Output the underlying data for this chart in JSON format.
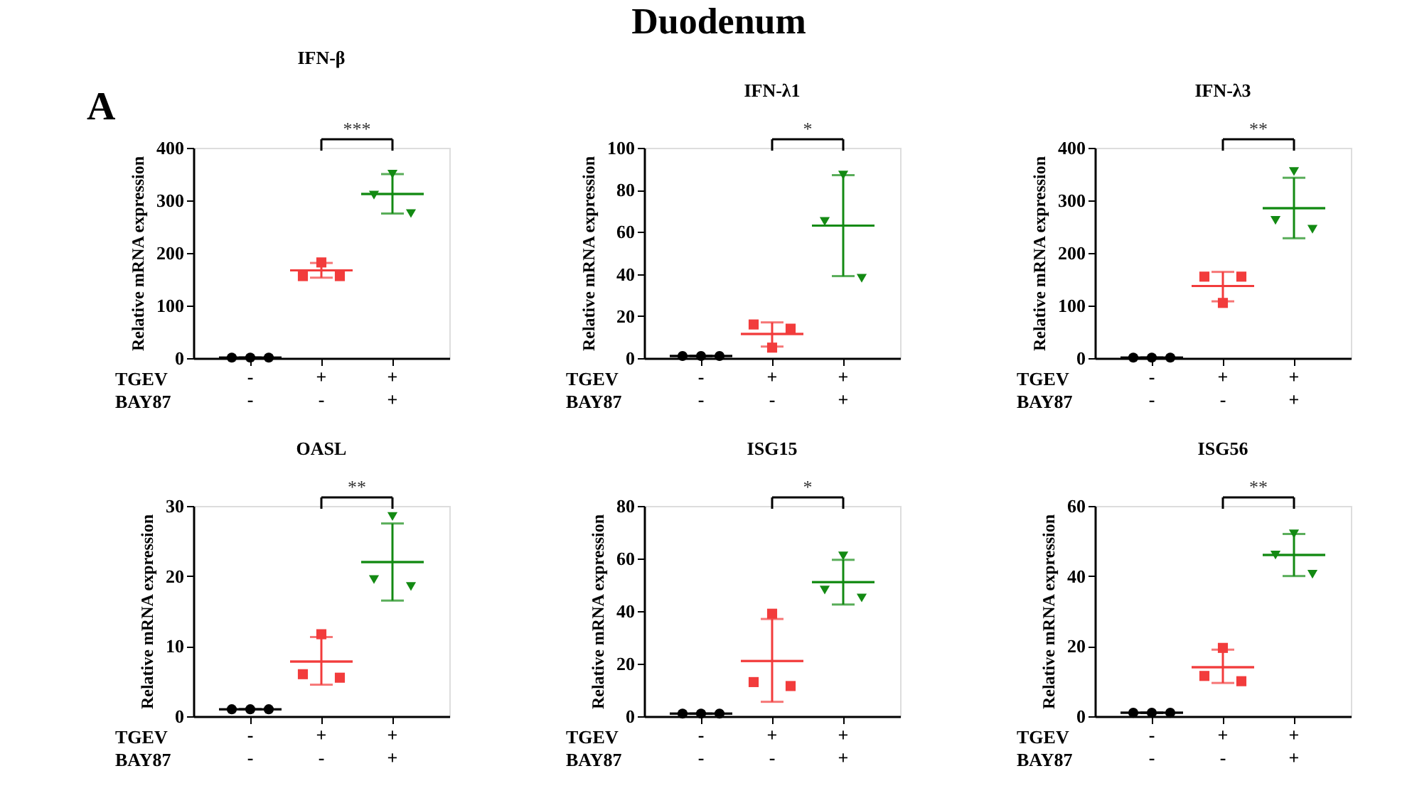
{
  "chart_data": [
    {
      "type": "scatter",
      "title": "IFN-β",
      "ylabel": "Relative mRNA expression",
      "categories": [
        "-\n-",
        "+\n-",
        "+\n+"
      ],
      "ylim": [
        0,
        400
      ],
      "yticks": [
        0,
        100,
        200,
        300,
        400
      ],
      "series": [
        {
          "color": "#000000",
          "marker": "circle",
          "x": [
            "-\n-",
            "-\n-",
            "-\n-"
          ],
          "values": [
            1,
            1,
            1
          ]
        },
        {
          "color": "#f23c3c",
          "marker": "square",
          "x": [
            "+\n-",
            "+\n-",
            "+\n-"
          ],
          "values": [
            156,
            182,
            156
          ]
        },
        {
          "color": "#138a13",
          "marker": "triangle",
          "x": [
            "+\n+",
            "+\n+",
            "+\n+"
          ],
          "values": [
            310,
            350,
            275
          ]
        },
        {
          "type": "box",
          "color": "#000000",
          "x": [
            "-\n-"
          ],
          "boxes": [
            {
              "low": 1,
              "q1": 1,
              "median": 1,
              "q3": 1,
              "high": 1
            }
          ]
        },
        {
          "type": "box",
          "color": "#f23c3c",
          "x": [
            "+\n-"
          ],
          "boxes": [
            {
              "low": 153,
              "q1": 167,
              "median": 167,
              "q3": 167,
              "high": 181
            }
          ]
        },
        {
          "type": "box",
          "color": "#138a13",
          "x": [
            "+\n+"
          ],
          "boxes": [
            {
              "low": 275,
              "q1": 312,
              "median": 312,
              "q3": 312,
              "high": 350
            }
          ]
        }
      ],
      "annotations": [
        "Duodenum",
        "A",
        "TGEV",
        "BAY87",
        "***"
      ]
    },
    {
      "type": "scatter",
      "title": "IFN-λ1",
      "ylabel": "Relative mRNA expression",
      "categories": [
        "-\n-",
        "+\n-",
        "+\n+"
      ],
      "ylim": [
        0,
        100
      ],
      "yticks": [
        0,
        20,
        40,
        60,
        80,
        100
      ],
      "series": [
        {
          "color": "#000000",
          "marker": "circle",
          "x": [
            "-\n-",
            "-\n-",
            "-\n-"
          ],
          "values": [
            1,
            1,
            1
          ]
        },
        {
          "color": "#f23c3c",
          "marker": "square",
          "x": [
            "+\n-",
            "+\n-",
            "+\n-"
          ],
          "values": [
            16,
            5,
            14
          ]
        },
        {
          "color": "#138a13",
          "marker": "triangle",
          "x": [
            "+\n+",
            "+\n+",
            "+\n+"
          ],
          "values": [
            65,
            87,
            38
          ]
        },
        {
          "type": "box",
          "color": "#000000",
          "x": [
            "-\n-"
          ],
          "boxes": [
            {
              "low": 1,
              "q1": 1,
              "median": 1,
              "q3": 1,
              "high": 1
            }
          ]
        },
        {
          "type": "box",
          "color": "#f23c3c",
          "x": [
            "+\n-"
          ],
          "boxes": [
            {
              "low": 5.5,
              "q1": 11.5,
              "median": 11.5,
              "q3": 11.5,
              "high": 17
            }
          ]
        },
        {
          "type": "box",
          "color": "#138a13",
          "x": [
            "+\n+"
          ],
          "boxes": [
            {
              "low": 39,
              "q1": 63,
              "median": 63,
              "q3": 63,
              "high": 87
            }
          ]
        }
      ],
      "annotations": [
        "TGEV",
        "BAY87",
        "*"
      ]
    },
    {
      "type": "scatter",
      "title": "IFN-λ3",
      "ylabel": "Relative mRNA expression",
      "categories": [
        "-\n-",
        "+\n-",
        "+\n+"
      ],
      "ylim": [
        0,
        400
      ],
      "yticks": [
        0,
        100,
        200,
        300,
        400
      ],
      "series": [
        {
          "color": "#000000",
          "marker": "circle",
          "x": [
            "-\n-",
            "-\n-",
            "-\n-"
          ],
          "values": [
            1,
            1,
            1
          ]
        },
        {
          "color": "#f23c3c",
          "marker": "square",
          "x": [
            "+\n-",
            "+\n-",
            "+\n-"
          ],
          "values": [
            155,
            105,
            155
          ]
        },
        {
          "color": "#138a13",
          "marker": "triangle",
          "x": [
            "+\n+",
            "+\n+",
            "+\n+"
          ],
          "values": [
            262,
            355,
            245
          ]
        },
        {
          "type": "box",
          "color": "#000000",
          "x": [
            "-\n-"
          ],
          "boxes": [
            {
              "low": 1,
              "q1": 1,
              "median": 1,
              "q3": 1,
              "high": 1
            }
          ]
        },
        {
          "type": "box",
          "color": "#f23c3c",
          "x": [
            "+\n-"
          ],
          "boxes": [
            {
              "low": 108,
              "q1": 137,
              "median": 137,
              "q3": 137,
              "high": 164
            }
          ]
        },
        {
          "type": "box",
          "color": "#138a13",
          "x": [
            "+\n+"
          ],
          "boxes": [
            {
              "low": 228,
              "q1": 285,
              "median": 285,
              "q3": 285,
              "high": 343
            }
          ]
        }
      ],
      "annotations": [
        "TGEV",
        "BAY87",
        "**"
      ]
    },
    {
      "type": "scatter",
      "title": "OASL",
      "ylabel": "Relative mRNA expression",
      "categories": [
        "-\n-",
        "+\n-",
        "+\n+"
      ],
      "ylim": [
        0,
        30
      ],
      "yticks": [
        0,
        10,
        20,
        30
      ],
      "series": [
        {
          "color": "#000000",
          "marker": "circle",
          "x": [
            "-\n-",
            "-\n-",
            "-\n-"
          ],
          "values": [
            1,
            1,
            1
          ]
        },
        {
          "color": "#f23c3c",
          "marker": "square",
          "x": [
            "+\n-",
            "+\n-",
            "+\n-"
          ],
          "values": [
            6,
            11.7,
            5.5
          ]
        },
        {
          "color": "#138a13",
          "marker": "triangle",
          "x": [
            "+\n+",
            "+\n+",
            "+\n+"
          ],
          "values": [
            19.5,
            28.5,
            18.5
          ]
        },
        {
          "type": "box",
          "color": "#000000",
          "x": [
            "-\n-"
          ],
          "boxes": [
            {
              "low": 1,
              "q1": 1,
              "median": 1,
              "q3": 1,
              "high": 1
            }
          ]
        },
        {
          "type": "box",
          "color": "#f23c3c",
          "x": [
            "+\n-"
          ],
          "boxes": [
            {
              "low": 4.5,
              "q1": 7.8,
              "median": 7.8,
              "q3": 7.8,
              "high": 11.3
            }
          ]
        },
        {
          "type": "box",
          "color": "#138a13",
          "x": [
            "+\n+"
          ],
          "boxes": [
            {
              "low": 16.5,
              "q1": 22,
              "median": 22,
              "q3": 22,
              "high": 27.5
            }
          ]
        }
      ],
      "annotations": [
        "TGEV",
        "BAY87",
        "**"
      ]
    },
    {
      "type": "scatter",
      "title": "ISG15",
      "ylabel": "Relative mRNA expression",
      "categories": [
        "-\n-",
        "+\n-",
        "+\n+"
      ],
      "ylim": [
        0,
        80
      ],
      "yticks": [
        0,
        20,
        40,
        60,
        80
      ],
      "series": [
        {
          "color": "#000000",
          "marker": "circle",
          "x": [
            "-\n-",
            "-\n-",
            "-\n-"
          ],
          "values": [
            1,
            1,
            1
          ]
        },
        {
          "color": "#f23c3c",
          "marker": "square",
          "x": [
            "+\n-",
            "+\n-",
            "+\n-"
          ],
          "values": [
            13,
            39,
            11.5
          ]
        },
        {
          "color": "#138a13",
          "marker": "triangle",
          "x": [
            "+\n+",
            "+\n+",
            "+\n+"
          ],
          "values": [
            48,
            61,
            45
          ]
        },
        {
          "type": "box",
          "color": "#000000",
          "x": [
            "-\n-"
          ],
          "boxes": [
            {
              "low": 1,
              "q1": 1,
              "median": 1,
              "q3": 1,
              "high": 1
            }
          ]
        },
        {
          "type": "box",
          "color": "#f23c3c",
          "x": [
            "+\n-"
          ],
          "boxes": [
            {
              "low": 5.5,
              "q1": 21,
              "median": 21,
              "q3": 21,
              "high": 37
            }
          ]
        },
        {
          "type": "box",
          "color": "#138a13",
          "x": [
            "+\n+"
          ],
          "boxes": [
            {
              "low": 42.5,
              "q1": 51,
              "median": 51,
              "q3": 51,
              "high": 59.5
            }
          ]
        }
      ],
      "annotations": [
        "TGEV",
        "BAY87",
        "*"
      ]
    },
    {
      "type": "scatter",
      "title": "ISG56",
      "ylabel": "Relative mRNA expression",
      "categories": [
        "-\n-",
        "+\n-",
        "+\n+"
      ],
      "ylim": [
        0,
        60
      ],
      "yticks": [
        0,
        20,
        40,
        60
      ],
      "series": [
        {
          "color": "#000000",
          "marker": "circle",
          "x": [
            "-\n-",
            "-\n-",
            "-\n-"
          ],
          "values": [
            1,
            1,
            1
          ]
        },
        {
          "color": "#f23c3c",
          "marker": "square",
          "x": [
            "+\n-",
            "+\n-",
            "+\n-"
          ],
          "values": [
            11.5,
            19.5,
            10
          ]
        },
        {
          "color": "#138a13",
          "marker": "triangle",
          "x": [
            "+\n+",
            "+\n+",
            "+\n+"
          ],
          "values": [
            46,
            52,
            40.5
          ]
        },
        {
          "type": "box",
          "color": "#000000",
          "x": [
            "-\n-"
          ],
          "boxes": [
            {
              "low": 1,
              "q1": 1,
              "median": 1,
              "q3": 1,
              "high": 1
            }
          ]
        },
        {
          "type": "box",
          "color": "#f23c3c",
          "x": [
            "+\n-"
          ],
          "boxes": [
            {
              "low": 9.5,
              "q1": 14,
              "median": 14,
              "q3": 14,
              "high": 19
            }
          ]
        },
        {
          "type": "box",
          "color": "#138a13",
          "x": [
            "+\n+"
          ],
          "boxes": [
            {
              "low": 40,
              "q1": 46,
              "median": 46,
              "q3": 46,
              "high": 52
            }
          ]
        }
      ],
      "annotations": [
        "TGEV",
        "BAY87",
        "**"
      ]
    }
  ]
}
